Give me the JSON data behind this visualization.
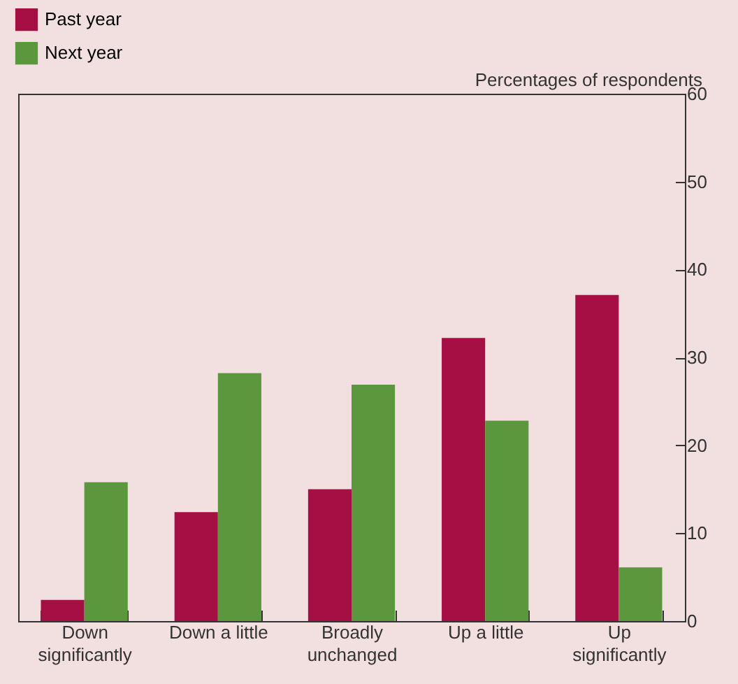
{
  "chart_data": {
    "type": "bar",
    "ylabel": "Percentages of respondents",
    "categories": [
      "Down significantly",
      "Down a little",
      "Broadly unchanged",
      "Up a little",
      "Up significantly"
    ],
    "series": [
      {
        "name": "Past year",
        "color": "#a50f43",
        "values": [
          2.4,
          12.4,
          15.0,
          32.2,
          37.1
        ]
      },
      {
        "name": "Next year",
        "color": "#5b973c",
        "values": [
          15.8,
          28.2,
          26.9,
          22.8,
          6.1
        ]
      }
    ],
    "ylim": [
      0,
      60
    ],
    "yticks": [
      0,
      10,
      20,
      30,
      40,
      50,
      60
    ],
    "grid": false,
    "legend": "top left"
  }
}
